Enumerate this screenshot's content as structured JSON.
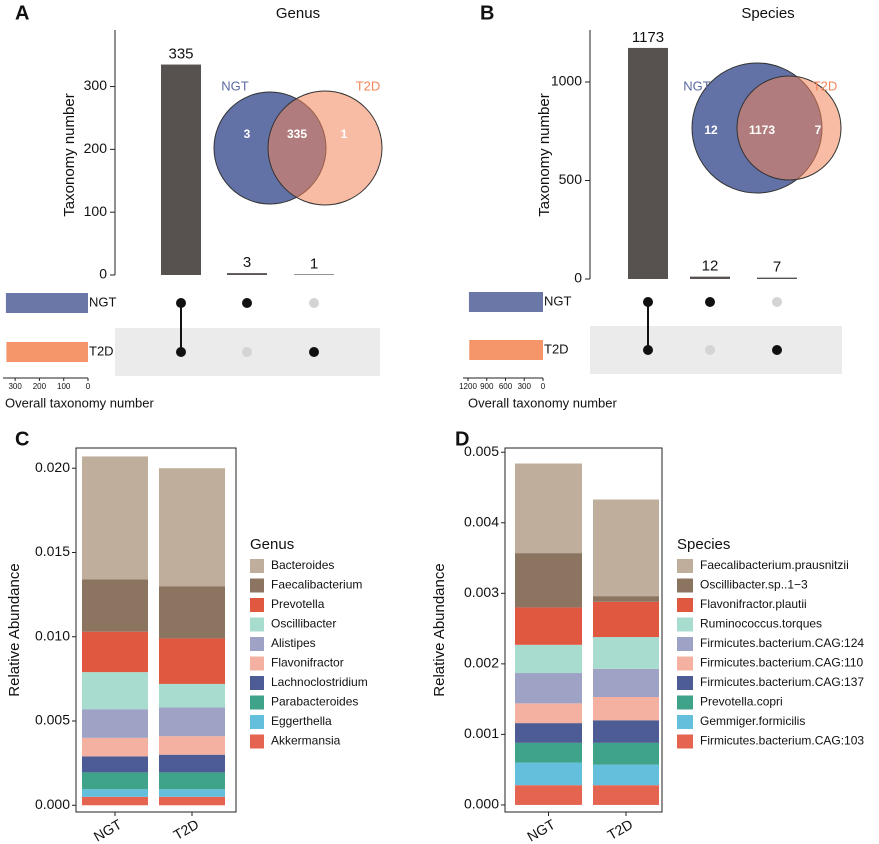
{
  "chart_data": [
    {
      "type": "upset",
      "panel": "A",
      "title": "Genus",
      "ylabel": "Taxonomy number",
      "set_xlabel": "Overall taxonomy number",
      "values": [
        335,
        3,
        1
      ],
      "bar_color": "#575250",
      "ylim": [
        0,
        390
      ],
      "yticks": [
        0,
        100,
        200,
        300
      ],
      "sets": [
        "NGT",
        "T2D"
      ],
      "set_sizes": [
        338,
        336
      ],
      "set_colors": [
        "#6b77a6",
        "#f5956a"
      ],
      "set_xlim": [
        0,
        350
      ],
      "set_xticks": [
        300,
        200,
        100,
        0
      ],
      "intersection_sets": [
        [
          "NGT",
          "T2D"
        ],
        [
          "NGT"
        ],
        [
          "T2D"
        ]
      ],
      "venn": {
        "values": [
          3,
          335,
          1
        ],
        "colors": [
          "#5b6aa1",
          "#f2855b"
        ]
      }
    },
    {
      "type": "upset",
      "panel": "B",
      "title": "Species",
      "ylabel": "Taxonomy number",
      "set_xlabel": "Overall taxonomy number",
      "values": [
        1173,
        12,
        7
      ],
      "bar_color": "#575250",
      "ylim": [
        0,
        1264
      ],
      "yticks": [
        0,
        500,
        1000
      ],
      "sets": [
        "NGT",
        "T2D"
      ],
      "set_sizes": [
        1185,
        1180
      ],
      "set_colors": [
        "#6b77a6",
        "#f5956a"
      ],
      "set_xlim": [
        0,
        1280
      ],
      "set_xticks": [
        1200,
        900,
        600,
        300,
        0
      ],
      "intersection_sets": [
        [
          "NGT",
          "T2D"
        ],
        [
          "NGT"
        ],
        [
          "T2D"
        ]
      ],
      "venn": {
        "values": [
          12,
          1173,
          7
        ],
        "colors": [
          "#5b6aa1",
          "#f2855b"
        ]
      }
    },
    {
      "type": "stacked_bar",
      "panel": "C",
      "ylabel": "Relative Abundance",
      "legend_title": "Genus",
      "categories": [
        "NGT",
        "T2D"
      ],
      "ylim": [
        -0.0004,
        0.0212
      ],
      "yticks": [
        {
          "value": 0,
          "label": "0.000"
        },
        0.005,
        {
          "value": 0.01,
          "label": "0.010"
        },
        0.015,
        {
          "value": 0.02,
          "label": "0.020"
        }
      ],
      "series": [
        {
          "name": "Bacteroides",
          "color": "#bfae9b",
          "values": [
            0.0073,
            0.007
          ]
        },
        {
          "name": "Faecalibacterium",
          "color": "#8b7460",
          "values": [
            0.0031,
            0.0031
          ]
        },
        {
          "name": "Prevotella",
          "color": "#e05840",
          "values": [
            0.0024,
            0.0027
          ]
        },
        {
          "name": "Oscillibacter",
          "color": "#a8dccf",
          "values": [
            0.0022,
            0.0014
          ]
        },
        {
          "name": "Alistipes",
          "color": "#9ea3c6",
          "values": [
            0.0017,
            0.0017
          ]
        },
        {
          "name": "Flavonifractor",
          "color": "#f4b0a0",
          "values": [
            0.0011,
            0.0011
          ]
        },
        {
          "name": "Lachnoclostridium",
          "color": "#4d5c94",
          "values": [
            0.00095,
            0.00105
          ]
        },
        {
          "name": "Parabacteroides",
          "color": "#3fa38a",
          "values": [
            0.001,
            0.001
          ]
        },
        {
          "name": "Eggerthella",
          "color": "#64bfdd",
          "values": [
            0.00045,
            0.00045
          ]
        },
        {
          "name": "Akkermansia",
          "color": "#e4644f",
          "values": [
            0.0005,
            0.0005
          ]
        }
      ]
    },
    {
      "type": "stacked_bar",
      "panel": "D",
      "ylabel": "Relative Abundance",
      "legend_title": "Species",
      "categories": [
        "NGT",
        "T2D"
      ],
      "ylim": [
        -0.0001,
        0.00506
      ],
      "yticks": [
        {
          "value": 0,
          "label": "0.000"
        },
        0.001,
        0.002,
        0.003,
        0.004,
        0.005
      ],
      "series": [
        {
          "name": "Faecalibacterium.prausnitzii",
          "color": "#bfae9b",
          "values": [
            0.00127,
            0.00137
          ]
        },
        {
          "name": "Oscillibacter.sp..1−3",
          "color": "#8b7460",
          "values": [
            0.00077,
            8e-05
          ]
        },
        {
          "name": "Flavonifractor.plautii",
          "color": "#e05840",
          "values": [
            0.00053,
            0.0005
          ]
        },
        {
          "name": "Ruminococcus.torques",
          "color": "#a8dccf",
          "values": [
            0.0004,
            0.00045
          ]
        },
        {
          "name": "Firmicutes.bacterium.CAG:124",
          "color": "#9ea3c6",
          "values": [
            0.00043,
            0.0004
          ]
        },
        {
          "name": "Firmicutes.bacterium.CAG:110",
          "color": "#f4b0a0",
          "values": [
            0.00028,
            0.00033
          ]
        },
        {
          "name": "Firmicutes.bacterium.CAG:137",
          "color": "#4d5c94",
          "values": [
            0.00028,
            0.00032
          ]
        },
        {
          "name": "Prevotella.copri",
          "color": "#3fa38a",
          "values": [
            0.00028,
            0.00031
          ]
        },
        {
          "name": "Gemmiger.formicilis",
          "color": "#64bfdd",
          "values": [
            0.00032,
            0.00029
          ]
        },
        {
          "name": "Firmicutes.bacterium.CAG:103",
          "color": "#e4644f",
          "values": [
            0.00028,
            0.00028
          ]
        }
      ]
    }
  ]
}
